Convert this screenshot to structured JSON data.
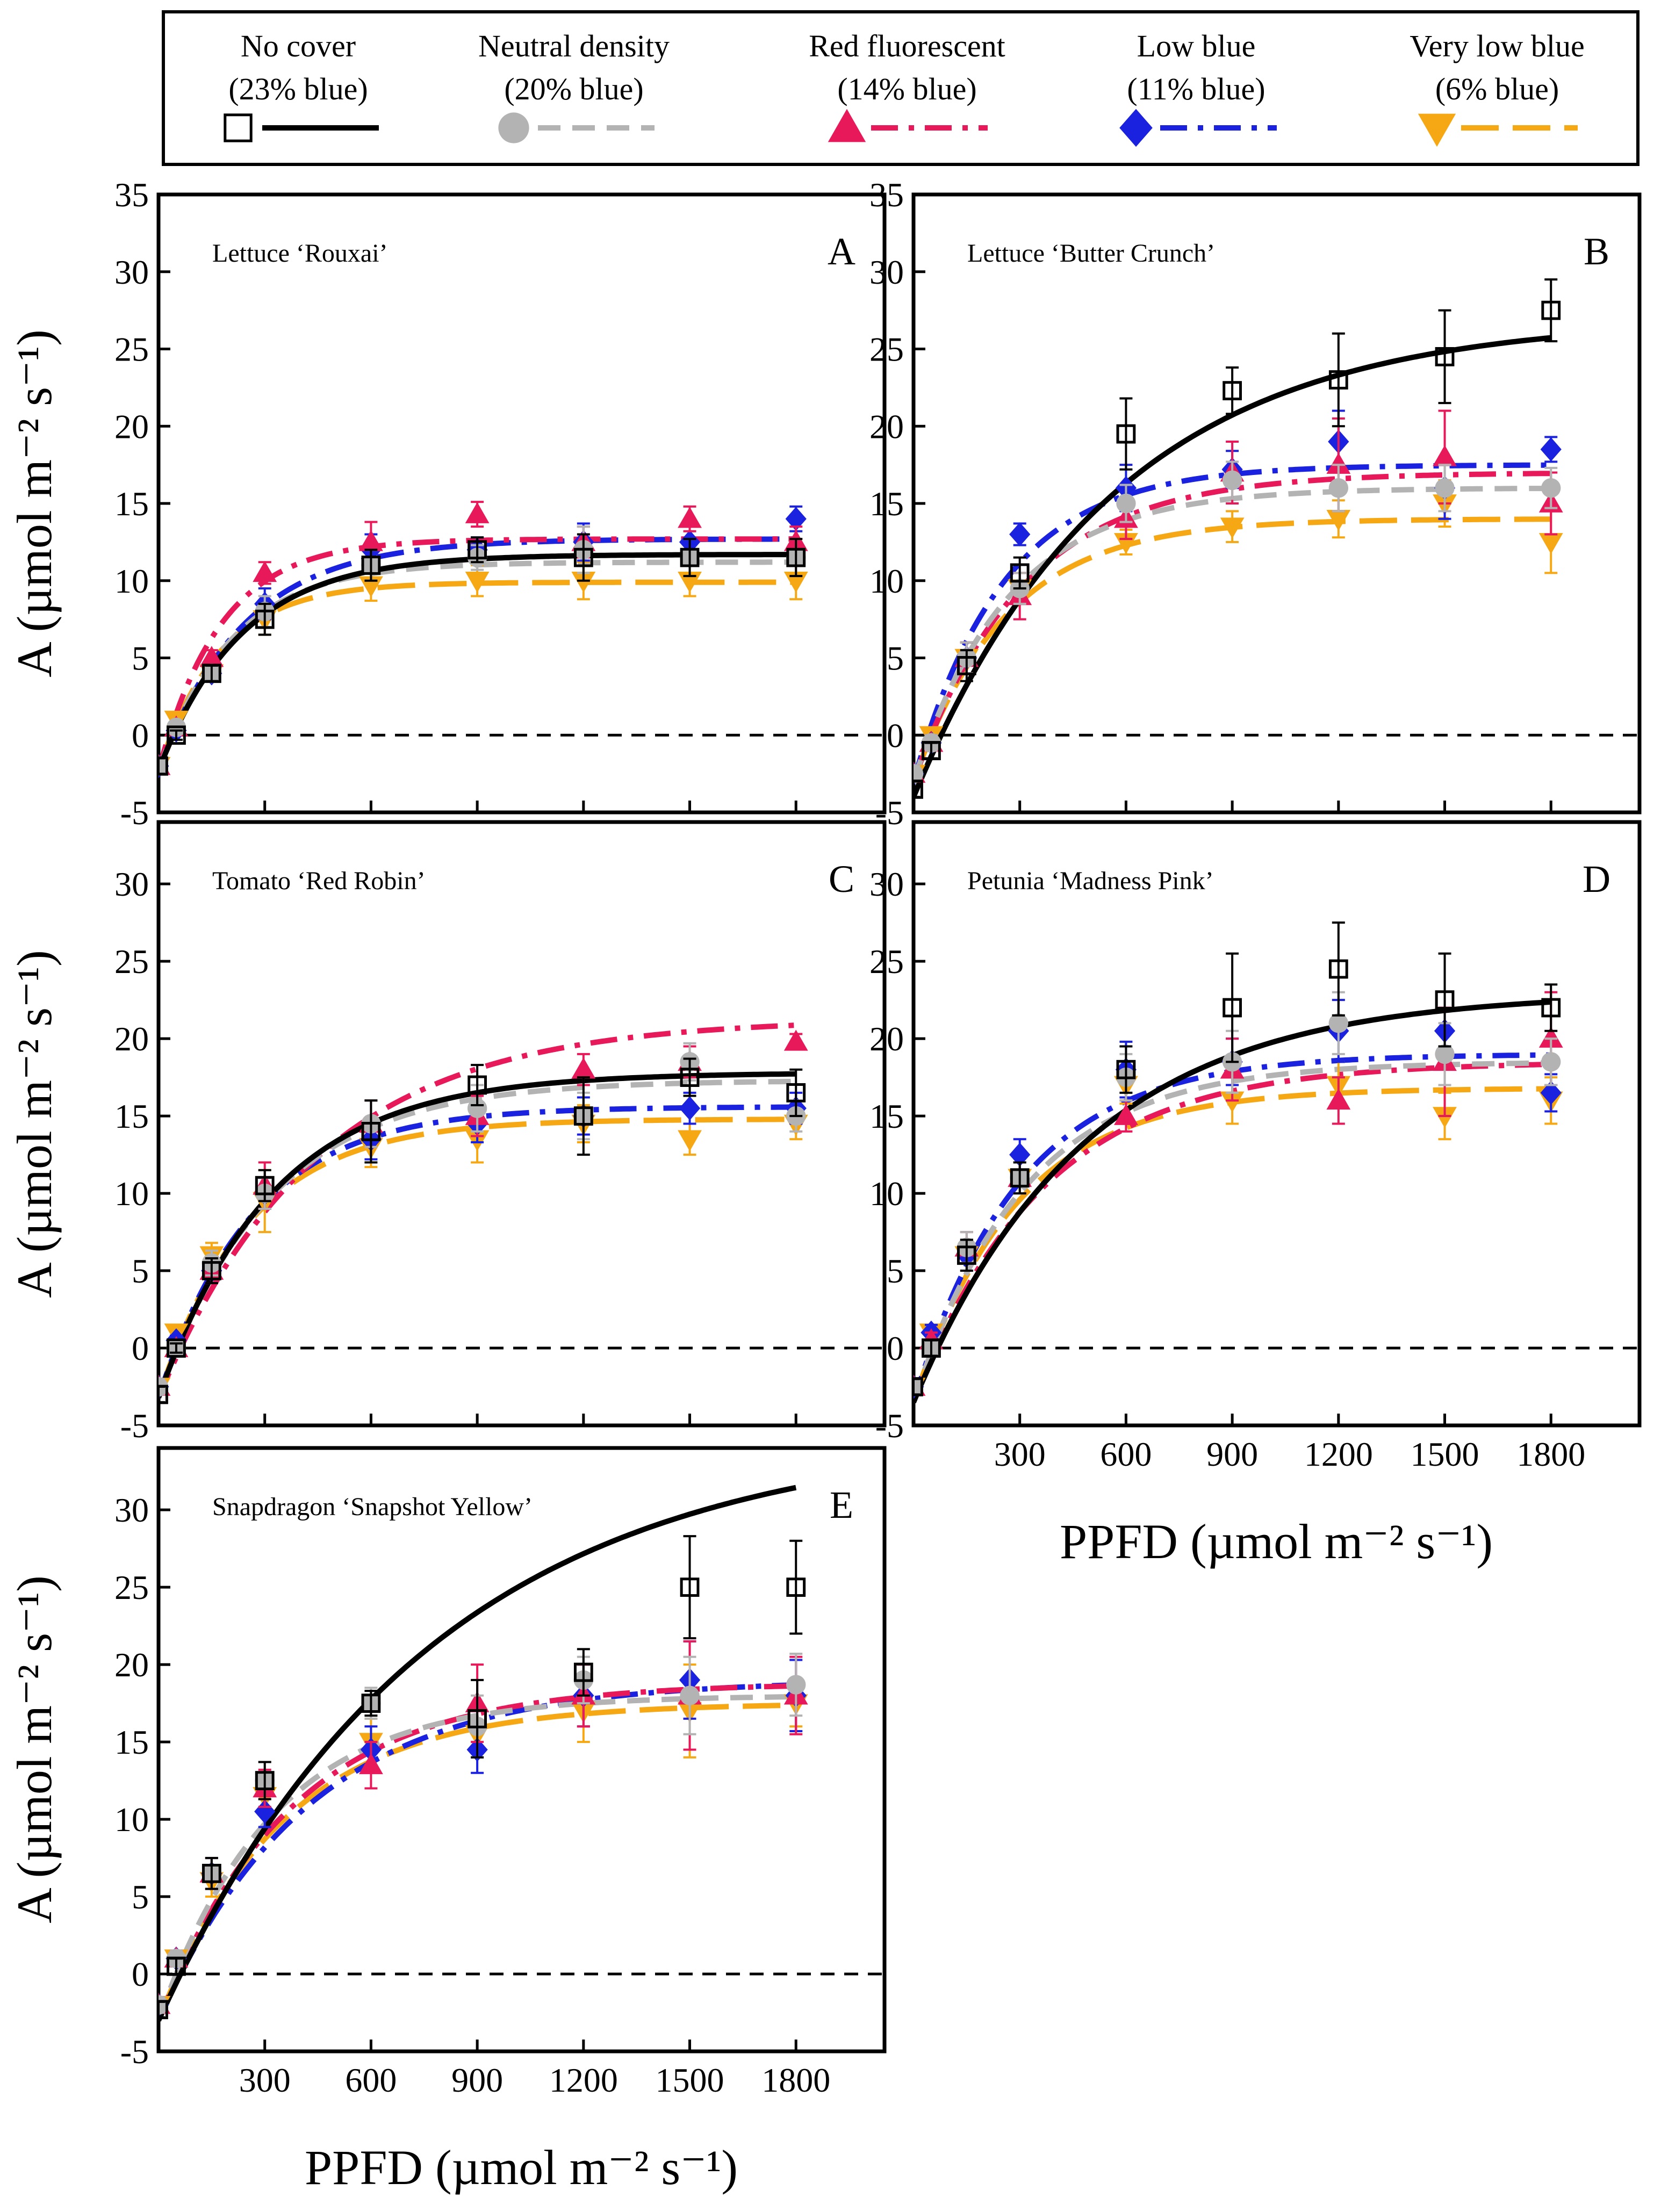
{
  "chart_data": {
    "type": "scatter",
    "x_ticks": [
      300,
      600,
      900,
      1200,
      1500,
      1800
    ],
    "x_tick_labels": [
      "300",
      "600",
      "900",
      "1200",
      "1500",
      "1800"
    ],
    "y_ticks_top": [
      -5,
      0,
      5,
      10,
      15,
      20,
      25,
      30,
      35
    ],
    "y_ticks": [
      -5,
      0,
      5,
      10,
      15,
      20,
      25,
      30
    ],
    "xlim": [
      0,
      2050
    ],
    "xlabel": "PPFD (µmol m⁻² s⁻¹)",
    "ylabel": "A (µmol m⁻² s⁻¹)",
    "series": [
      {
        "name": "No cover",
        "label_line1": "No cover",
        "label_line2": "(23% blue)",
        "color": "#000000",
        "marker": "square-open",
        "dash": "solid"
      },
      {
        "name": "Neutral density",
        "label_line1": "Neutral density",
        "label_line2": "(20% blue)",
        "color": "#b3b3b3",
        "marker": "circle",
        "dash": "dash"
      },
      {
        "name": "Red fluorescent",
        "label_line1": "Red fluorescent",
        "label_line2": "(14% blue)",
        "color": "#e8195a",
        "marker": "triangle-up",
        "dash": "dashdot"
      },
      {
        "name": "Low blue",
        "label_line1": "Low blue",
        "label_line2": "(11% blue)",
        "color": "#1a22e0",
        "marker": "diamond",
        "dash": "dashdotblue"
      },
      {
        "name": "Very low blue",
        "label_line1": "Very low blue",
        "label_line2": "(6% blue)",
        "color": "#f5a813",
        "marker": "triangle-down",
        "dash": "longdash"
      }
    ],
    "panels": [
      {
        "letter": "A",
        "title": "Lettuce ‘Rouxai’",
        "ylim": [
          -5,
          35
        ],
        "xticks_shown": false,
        "x": [
          0,
          50,
          150,
          300,
          600,
          900,
          1200,
          1500,
          1800
        ],
        "points": [
          [
            -2,
            0,
            4,
            7.5,
            11,
            12,
            11.5,
            11.5,
            11.5
          ],
          [
            -2,
            0.5,
            4,
            8,
            11,
            11.5,
            12,
            11.5,
            11.5
          ],
          [
            -2,
            0.5,
            5,
            10.5,
            12.5,
            14.3,
            12.5,
            14,
            12.5
          ],
          [
            -2,
            0.3,
            4,
            8.5,
            12,
            12,
            12.5,
            12.5,
            14
          ],
          [
            -2,
            1,
            4,
            7.5,
            9.7,
            10,
            10,
            10,
            10
          ]
        ],
        "errors": [
          [
            0.5,
            0.3,
            0.5,
            1,
            1,
            0.8,
            1.5,
            1.2,
            1.2
          ],
          [
            0.5,
            0.3,
            0.5,
            1,
            1,
            0.8,
            1.5,
            1.2,
            1.2
          ],
          [
            0.5,
            0.3,
            0.5,
            0.7,
            1.3,
            0.8,
            1,
            0.8,
            1
          ],
          [
            0.5,
            0.3,
            0.5,
            1,
            1,
            0.8,
            1.2,
            1,
            0.8
          ],
          [
            0.5,
            0.3,
            0.5,
            1,
            1,
            1,
            1.2,
            1,
            1.2
          ]
        ],
        "fits": [
          {
            "amax": 14.0,
            "rd": 2.3,
            "phi": 0.06
          },
          {
            "amax": 13.5,
            "rd": 2.3,
            "phi": 0.065
          },
          {
            "amax": 15.0,
            "rd": 2.3,
            "phi": 0.085
          },
          {
            "amax": 15.0,
            "rd": 2.3,
            "phi": 0.062
          },
          {
            "amax": 12.2,
            "rd": 2.3,
            "phi": 0.07
          }
        ]
      },
      {
        "letter": "B",
        "title": "Lettuce ‘Butter Crunch’",
        "ylim": [
          -5,
          35
        ],
        "xticks_shown": true,
        "x": [
          0,
          50,
          150,
          300,
          600,
          900,
          1200,
          1500,
          1800
        ],
        "points": [
          [
            -3.5,
            -1,
            4.5,
            10.5,
            19.5,
            22.3,
            23,
            24.5,
            27.5
          ],
          [
            -2.5,
            -0.5,
            5,
            9.5,
            15,
            16.5,
            16,
            16,
            16
          ],
          [
            -2.5,
            -0.5,
            5,
            9,
            14,
            17,
            17.5,
            18,
            15
          ],
          [
            -2.5,
            -0.5,
            5,
            13,
            16,
            17.2,
            19,
            16,
            18.5
          ],
          [
            -2.5,
            0,
            5,
            9.5,
            12.5,
            13.5,
            14,
            15,
            12.5
          ]
        ],
        "errors": [
          [
            0.5,
            0.5,
            1,
            1,
            2.3,
            1.5,
            3,
            3,
            2
          ],
          [
            0.5,
            0.5,
            1,
            1,
            1.2,
            1.2,
            1.5,
            1.5,
            1.3
          ],
          [
            0.5,
            0.5,
            1,
            1.5,
            1.3,
            2,
            3,
            3,
            2
          ],
          [
            0.5,
            0.5,
            1,
            0.7,
            1.5,
            1.2,
            2,
            2,
            0.8
          ],
          [
            0.5,
            0.5,
            1,
            1,
            0.8,
            1,
            1.2,
            1.5,
            2
          ]
        ],
        "fits": [
          {
            "amax": 31.0,
            "rd": 4.0,
            "phi": 0.055
          },
          {
            "amax": 19.0,
            "rd": 3.0,
            "phi": 0.07
          },
          {
            "amax": 20.0,
            "rd": 3.0,
            "phi": 0.065
          },
          {
            "amax": 20.5,
            "rd": 3.0,
            "phi": 0.08
          },
          {
            "amax": 17.0,
            "rd": 3.0,
            "phi": 0.065
          }
        ]
      },
      {
        "letter": "C",
        "title": "Tomato ‘Red Robin’",
        "ylim": [
          -5,
          34
        ],
        "xticks_shown": false,
        "x": [
          0,
          50,
          150,
          300,
          600,
          900,
          1200,
          1500,
          1800
        ],
        "points": [
          [
            -3,
            0,
            5,
            10.5,
            14,
            17,
            15,
            17.5,
            16.5
          ],
          [
            -2.5,
            0,
            5.5,
            10,
            14.5,
            15.5,
            15,
            18.5,
            15
          ],
          [
            -2.5,
            0,
            5,
            10.5,
            14.5,
            15,
            18,
            18.5,
            19.8
          ],
          [
            -2.5,
            0.5,
            5,
            10,
            13.5,
            14.5,
            15,
            15.5,
            15.5
          ],
          [
            -2.5,
            1,
            6,
            9.5,
            13,
            13.5,
            14.5,
            13.5,
            14.5
          ]
        ],
        "errors": [
          [
            0.5,
            0.3,
            0.8,
            1,
            2,
            1.3,
            2.5,
            1.2,
            1.5
          ],
          [
            0.5,
            0.3,
            0.8,
            1,
            1.5,
            1.5,
            1.5,
            1.2,
            1
          ],
          [
            0.5,
            0.3,
            0.8,
            1.5,
            1.5,
            1.3,
            1,
            1,
            0.5
          ],
          [
            0.5,
            0.3,
            0.8,
            1,
            1.3,
            1.2,
            1.2,
            1,
            1
          ],
          [
            0.5,
            0.3,
            0.8,
            2,
            1.3,
            1.5,
            1.2,
            1,
            1
          ]
        ],
        "fits": [
          {
            "amax": 21.0,
            "rd": 3.2,
            "phi": 0.065
          },
          {
            "amax": 20.5,
            "rd": 3.2,
            "phi": 0.065
          },
          {
            "amax": 24.5,
            "rd": 3.2,
            "phi": 0.055
          },
          {
            "amax": 18.8,
            "rd": 3.2,
            "phi": 0.07
          },
          {
            "amax": 18.0,
            "rd": 3.2,
            "phi": 0.07
          }
        ]
      },
      {
        "letter": "D",
        "title": "Petunia ‘Madness Pink’",
        "ylim": [
          -5,
          34
        ],
        "xticks_shown": true,
        "x": [
          0,
          50,
          150,
          300,
          600,
          900,
          1200,
          1500,
          1800
        ],
        "points": [
          [
            -2.5,
            0,
            6,
            11,
            18,
            22,
            24.5,
            22.5,
            22
          ],
          [
            -2.5,
            0,
            6.5,
            11,
            17.5,
            18.5,
            21,
            19,
            18.5
          ],
          [
            -2.5,
            0.5,
            6.5,
            11,
            15,
            18,
            16,
            18.5,
            20
          ],
          [
            -2.5,
            1,
            6,
            12.5,
            18,
            18.5,
            20.5,
            20.5,
            16.5
          ],
          [
            -2.5,
            1,
            6,
            11,
            17,
            16,
            17,
            15,
            16
          ]
        ],
        "errors": [
          [
            0.5,
            0.5,
            1,
            1,
            1.5,
            3.5,
            3,
            3,
            1.5
          ],
          [
            0.5,
            0.5,
            1,
            1,
            1.5,
            2,
            2,
            2,
            1.5
          ],
          [
            0.5,
            0.5,
            1,
            1,
            1,
            2,
            1.5,
            3.5,
            3
          ],
          [
            0.5,
            0.5,
            1,
            1,
            1.8,
            1.5,
            2,
            1.5,
            1.2
          ],
          [
            0.5,
            0.5,
            1,
            1,
            1.2,
            1.5,
            1.5,
            1.5,
            1.5
          ]
        ],
        "fits": [
          {
            "amax": 26.5,
            "rd": 3.5,
            "phi": 0.055
          },
          {
            "amax": 22.0,
            "rd": 3.5,
            "phi": 0.07
          },
          {
            "amax": 22.0,
            "rd": 3.5,
            "phi": 0.06
          },
          {
            "amax": 22.5,
            "rd": 3.5,
            "phi": 0.075
          },
          {
            "amax": 20.3,
            "rd": 3.5,
            "phi": 0.07
          }
        ]
      },
      {
        "letter": "E",
        "title": "Snapdragon ‘Snapshot Yellow’",
        "ylim": [
          -5,
          34
        ],
        "xticks_shown": true,
        "x": [
          0,
          50,
          150,
          300,
          600,
          900,
          1200,
          1500,
          1800
        ],
        "points": [
          [
            -2.3,
            0.5,
            6.5,
            12.5,
            17.5,
            16.5,
            19.5,
            25,
            25
          ],
          [
            -2,
            1,
            6.5,
            12.5,
            17.5,
            16,
            19,
            18,
            18.7
          ],
          [
            -2,
            1,
            6.5,
            12,
            13.5,
            17.5,
            18,
            18,
            18
          ],
          [
            -2,
            1,
            6.5,
            10.5,
            14.5,
            14.5,
            18,
            19,
            18
          ],
          [
            -2,
            1,
            6,
            11.5,
            15,
            15.5,
            17,
            17,
            17.5
          ]
        ],
        "errors": [
          [
            0.5,
            0.5,
            1,
            1.2,
            0.8,
            2.5,
            1.5,
            3.3,
            3
          ],
          [
            0.5,
            0.5,
            1,
            1.2,
            1,
            2,
            1.5,
            2.5,
            2
          ],
          [
            0.5,
            0.5,
            1,
            1.2,
            1.5,
            2.5,
            2,
            3.5,
            2.5
          ],
          [
            0.5,
            0.5,
            1,
            1,
            1.5,
            1.5,
            2,
            2.5,
            2.3
          ],
          [
            0.5,
            0.5,
            1,
            1.2,
            1.5,
            1.5,
            2,
            3,
            1.5
          ]
        ],
        "fits": [
          {
            "amax": 38.0,
            "rd": 3.0,
            "phi": 0.05
          },
          {
            "amax": 21.0,
            "rd": 3.0,
            "phi": 0.065
          },
          {
            "amax": 21.8,
            "rd": 3.0,
            "phi": 0.058
          },
          {
            "amax": 22.0,
            "rd": 3.0,
            "phi": 0.052
          },
          {
            "amax": 20.5,
            "rd": 3.0,
            "phi": 0.058
          }
        ]
      }
    ]
  }
}
